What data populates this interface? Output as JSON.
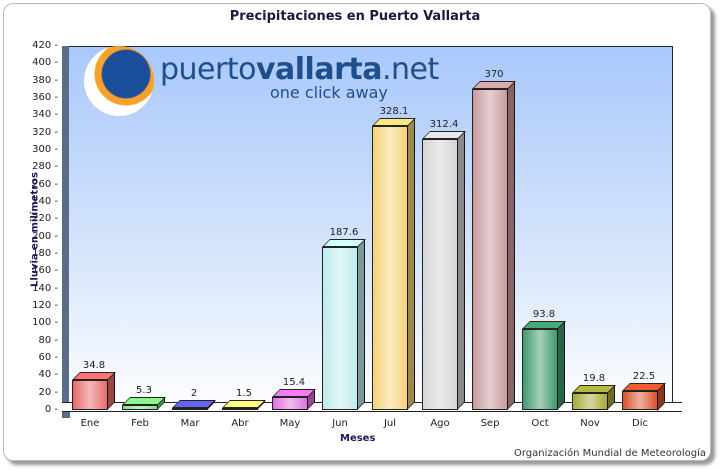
{
  "chart_data": {
    "type": "bar",
    "title": "Precipitaciones en Puerto Vallarta",
    "xlabel": "Meses",
    "ylabel": "Lluvia en milímetros",
    "categories": [
      "Ene",
      "Feb",
      "Mar",
      "Abr",
      "May",
      "Jun",
      "Jul",
      "Ago",
      "Sep",
      "Oct",
      "Nov",
      "Dic"
    ],
    "values": [
      34.8,
      5.3,
      2,
      1.5,
      15.4,
      187.6,
      328.1,
      312.4,
      370,
      93.8,
      19.8,
      22.5
    ],
    "value_labels": [
      "34.8",
      "5.3",
      "2",
      "1.5",
      "15.4",
      "187.6",
      "328.1",
      "312.4",
      "370",
      "93.8",
      "19.8",
      "22.5"
    ],
    "colors": [
      "#e86a6a",
      "#7fe07f",
      "#5a5ad8",
      "#f0f07a",
      "#e070e0",
      "#bfecec",
      "#f5d27a",
      "#d4d4d4",
      "#c99a9e",
      "#3f9a6e",
      "#a8a83a",
      "#d9542c"
    ],
    "ylim": [
      0,
      420
    ],
    "yticks": [
      "0",
      "20",
      "40",
      "60",
      "80",
      "100",
      "120",
      "140",
      "160",
      "180",
      "200",
      "220",
      "240",
      "260",
      "280",
      "300",
      "320",
      "340",
      "360",
      "380",
      "400",
      "420"
    ],
    "grid": false,
    "style": "3d-bar",
    "source": "Organización Mundial de Meteorología"
  },
  "logo": {
    "name_light": "puerto",
    "name_bold": "vallarta",
    "name_suffix": ".net",
    "tagline": "one click away"
  }
}
